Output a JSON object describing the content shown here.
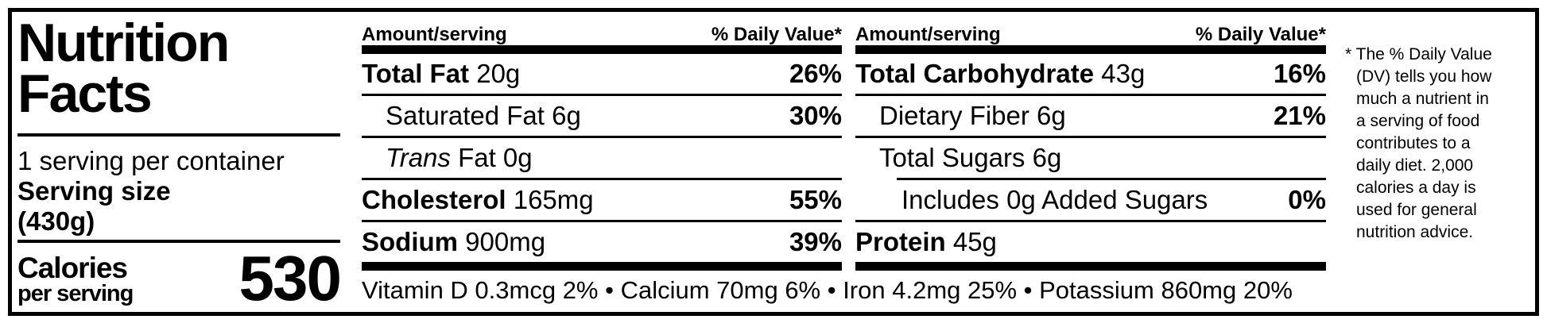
{
  "label": {
    "title_line1": "Nutrition",
    "title_line2": "Facts",
    "servings_per_container": "1 serving per container",
    "serving_size_label": "Serving size",
    "serving_size_value": "(430g)",
    "calories_label": "Calories",
    "calories_sublabel": "per serving",
    "calories_value": "530"
  },
  "columns": [
    {
      "header_amount": "Amount/serving",
      "header_dv": "% Daily Value*",
      "rows": [
        {
          "bold": "Total Fat",
          "plain": " 20g",
          "pct": "26%"
        },
        {
          "plain": "Saturated Fat 6g",
          "pct": "30%"
        },
        {
          "italic": "Trans",
          "plain": " Fat 0g",
          "pct": ""
        },
        {
          "bold": "Cholesterol",
          "plain": " 165mg",
          "pct": "55%"
        },
        {
          "bold": "Sodium",
          "plain": " 900mg",
          "pct": "39%"
        }
      ]
    },
    {
      "header_amount": "Amount/serving",
      "header_dv": "% Daily Value*",
      "rows": [
        {
          "bold": "Total Carbohydrate",
          "plain": " 43g",
          "pct": "16%"
        },
        {
          "plain": "Dietary Fiber 6g",
          "pct": "21%"
        },
        {
          "plain": "Total Sugars 6g",
          "pct": ""
        },
        {
          "plain": "Includes 0g Added Sugars",
          "pct": "0%"
        },
        {
          "bold": "Protein",
          "plain": " 45g",
          "pct": ""
        }
      ]
    }
  ],
  "micronutrients": "Vitamin D 0.3mcg 2% • Calcium 70mg 6% • Iron 4.2mg 25% • Potassium 860mg 20%",
  "footnote": "* The % Daily Value\n(DV) tells you how\nmuch a nutrient in\na serving of food\ncontributes to a\ndaily diet. 2,000\ncalories a day is\nused for general\nnutrition advice."
}
